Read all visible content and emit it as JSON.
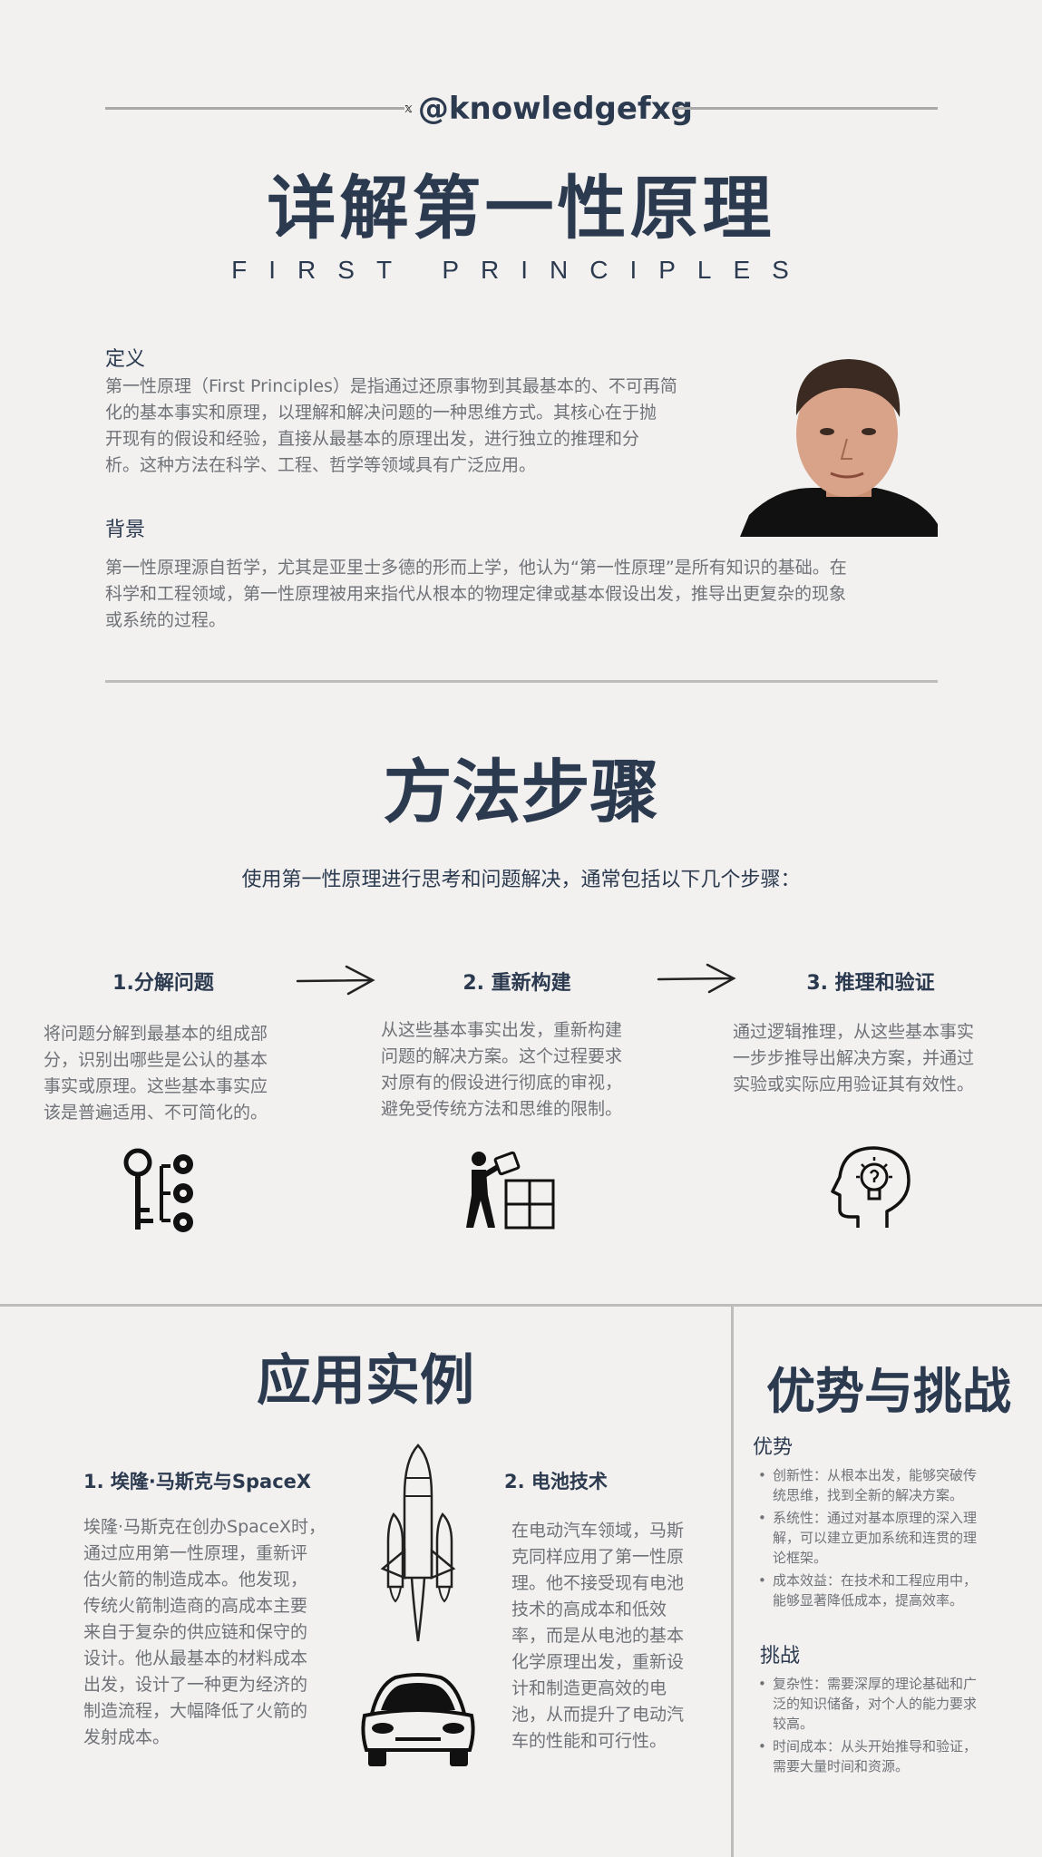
{
  "header": {
    "handle": "@knowledgefxg",
    "x_logo": "x-logo-icon",
    "title": "详解第一性原理",
    "subtitle": "FIRST PRINCIPLES"
  },
  "definition": {
    "heading": "定义",
    "lines": [
      "第一性原理（First Principles）是指通过还原事物到其最基本的、不可再简",
      "化的基本事实和原理，以理解和解决问题的一种思维方式。其核心在于抛",
      "开现有的假设和经验，直接从最基本的原理出发，进行独立的推理和分",
      "析。这种方法在科学、工程、哲学等领域具有广泛应用。"
    ]
  },
  "background": {
    "heading": "背景",
    "lines": [
      "第一性原理源自哲学，尤其是亚里士多德的形而上学，他认为“第一性原理”是所有知识的基础。在",
      "科学和工程领域，第一性原理被用来指代从根本的物理定律或基本假设出发，推导出更复杂的现象",
      "或系统的过程。"
    ]
  },
  "method": {
    "title": "方法步骤",
    "intro": "使用第一性原理进行思考和问题解决，通常包括以下几个步骤：",
    "steps": [
      {
        "title": "1.分解问题",
        "lines": [
          "将问题分解到最基本的组成部",
          "分，识别出哪些是公认的基本",
          "事实或原理。这些基本事实应",
          "该是普遍适用、不可简化的。"
        ],
        "icon": "key-gears-icon"
      },
      {
        "title": "2. 重新构建",
        "lines": [
          "从这些基本事实出发，重新构建",
          "问题的解决方案。这个过程要求",
          "对原有的假设进行彻底的审视，",
          "避免受传统方法和思维的限制。"
        ],
        "icon": "puzzle-builder-icon"
      },
      {
        "title": "3. 推理和验证",
        "lines": [
          "通过逻辑推理，从这些基本事实",
          "一步步推导出解决方案，并通过",
          "实验或实际应用验证其有效性。"
        ],
        "icon": "head-lightbulb-icon"
      }
    ]
  },
  "applications": {
    "title": "应用实例",
    "items": [
      {
        "title": "1. 埃隆·马斯克与SpaceX",
        "lines": [
          "埃隆·马斯克在创办SpaceX时，",
          "通过应用第一性原理，重新评",
          "估火箭的制造成本。他发现，",
          "传统火箭制造商的高成本主要",
          "来自于复杂的供应链和保守的",
          "设计。他从最基本的材料成本",
          "出发，设计了一种更为经济的",
          "制造流程，大幅降低了火箭的",
          "发射成本。"
        ]
      },
      {
        "title": "2. 电池技术",
        "lines": [
          "在电动汽车领域，马斯",
          "克同样应用了第一性原",
          "理。他不接受现有电池",
          "技术的高成本和低效",
          "率，而是从电池的基本",
          "化学原理出发，重新设",
          "计和制造更高效的电",
          "池，从而提升了电动汽",
          "车的性能和可行性。"
        ]
      }
    ]
  },
  "pros_cons": {
    "title": "优势与挑战",
    "advantages_heading": "优势",
    "advantages": [
      [
        "创新性：从根本出发，能够突破传",
        "统思维，找到全新的解决方案。"
      ],
      [
        "系统性：通过对基本原理的深入理",
        "解，可以建立更加系统和连贯的理",
        "论框架。"
      ],
      [
        "成本效益：在技术和工程应用中，",
        "能够显著降低成本，提高效率。"
      ]
    ],
    "challenges_heading": "挑战",
    "challenges": [
      [
        "复杂性：需要深厚的理论基础和广",
        "泛的知识储备，对个人的能力要求",
        "较高。"
      ],
      [
        "时间成本：从头开始推导和验证，",
        "需要大量时间和资源。"
      ]
    ]
  },
  "colors": {
    "navy": "#2c3a4f",
    "gray_text": "#6f7277",
    "background": "#f2f1f0",
    "rule": "#bdbdbd"
  }
}
